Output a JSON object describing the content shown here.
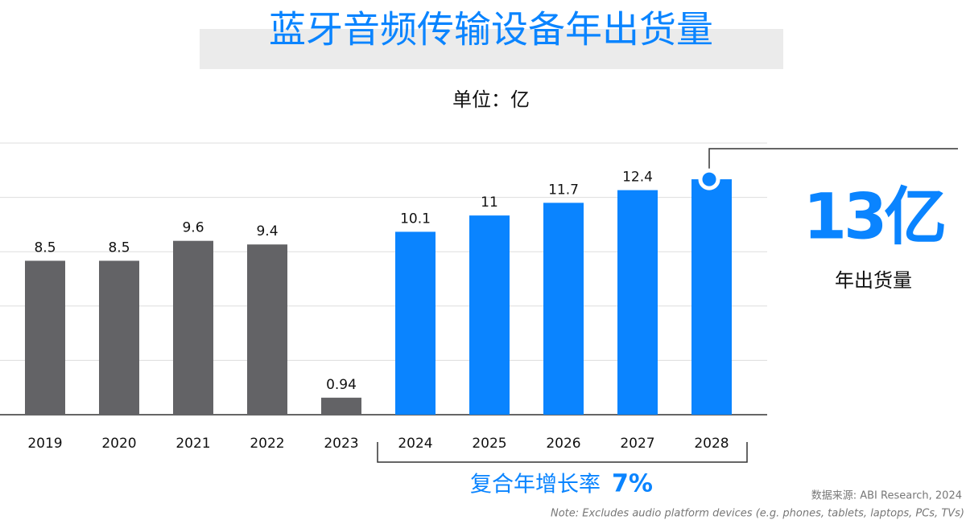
{
  "chart_data": {
    "type": "bar",
    "title": "蓝牙音频传输设备年出货量",
    "subtitle": "单位：亿",
    "categories": [
      "2019",
      "2020",
      "2021",
      "2022",
      "2023",
      "2024",
      "2025",
      "2026",
      "2027",
      "2028"
    ],
    "values": [
      8.5,
      8.5,
      9.6,
      9.4,
      0.94,
      10.1,
      11,
      11.7,
      12.4,
      13
    ],
    "value_labels": [
      "8.5",
      "8.5",
      "9.6",
      "9.4",
      "0.94",
      "10.1",
      "11",
      "11.7",
      "12.4",
      "13亿"
    ],
    "colors": [
      "#636366",
      "#636366",
      "#636366",
      "#636366",
      "#636366",
      "#0a84ff",
      "#0a84ff",
      "#0a84ff",
      "#0a84ff",
      "#0a84ff"
    ],
    "ylim": [
      0,
      15
    ],
    "yticks": [
      0,
      3,
      6,
      9,
      12,
      15
    ],
    "grid": true,
    "callout_caption": "年出货量",
    "cagr_label": "复合年增长率",
    "cagr_value": "7%",
    "source": "数据来源: ABI Research, 2024",
    "note": "Note: Excludes audio platform devices (e.g. phones, tablets, laptops, PCs, TVs)"
  }
}
